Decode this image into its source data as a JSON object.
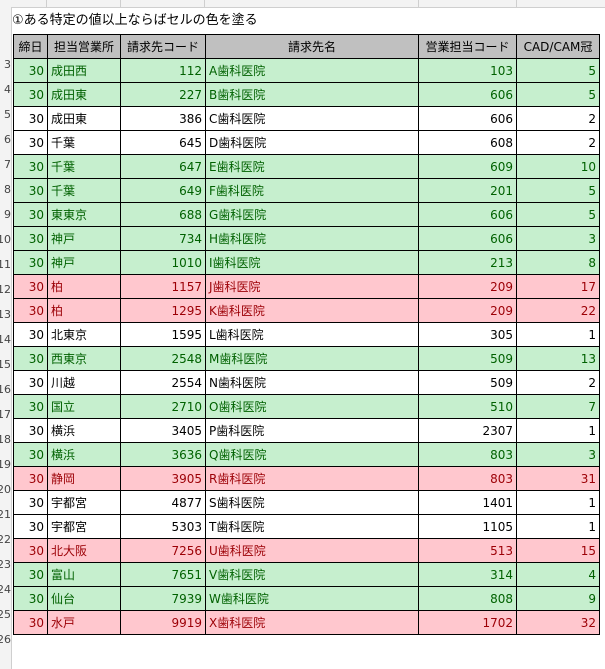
{
  "sheet": {
    "title": "①ある特定の値以上ならばセルの色を塗る",
    "row_numbers": [
      "3",
      "4",
      "5",
      "6",
      "7",
      "8",
      "9",
      "10",
      "11",
      "12",
      "13",
      "14",
      "15",
      "16",
      "17",
      "18",
      "19",
      "20",
      "21",
      "22",
      "23",
      "24",
      "25",
      "26"
    ]
  },
  "table": {
    "headers": [
      "締日",
      "担当営業所",
      "請求先コード",
      "請求先名",
      "営業担当コード",
      "CAD/CAM冠"
    ],
    "rows": [
      {
        "status": "green",
        "cells": [
          "30",
          "成田西",
          "112",
          "A歯科医院",
          "103",
          "5"
        ]
      },
      {
        "status": "green",
        "cells": [
          "30",
          "成田東",
          "227",
          "B歯科医院",
          "606",
          "5"
        ]
      },
      {
        "status": "plain",
        "cells": [
          "30",
          "成田東",
          "386",
          "C歯科医院",
          "606",
          "2"
        ]
      },
      {
        "status": "plain",
        "cells": [
          "30",
          "千葉",
          "645",
          "D歯科医院",
          "608",
          "2"
        ]
      },
      {
        "status": "green",
        "cells": [
          "30",
          "千葉",
          "647",
          "E歯科医院",
          "609",
          "10"
        ]
      },
      {
        "status": "green",
        "cells": [
          "30",
          "千葉",
          "649",
          "F歯科医院",
          "201",
          "5"
        ]
      },
      {
        "status": "green",
        "cells": [
          "30",
          "東東京",
          "688",
          "G歯科医院",
          "606",
          "5"
        ]
      },
      {
        "status": "green",
        "cells": [
          "30",
          "神戸",
          "734",
          "H歯科医院",
          "606",
          "3"
        ]
      },
      {
        "status": "green",
        "cells": [
          "30",
          "神戸",
          "1010",
          "I歯科医院",
          "213",
          "8"
        ]
      },
      {
        "status": "red",
        "cells": [
          "30",
          "柏",
          "1157",
          "J歯科医院",
          "209",
          "17"
        ]
      },
      {
        "status": "red",
        "cells": [
          "30",
          "柏",
          "1295",
          "K歯科医院",
          "209",
          "22"
        ]
      },
      {
        "status": "plain",
        "cells": [
          "30",
          "北東京",
          "1595",
          "L歯科医院",
          "305",
          "1"
        ]
      },
      {
        "status": "green",
        "cells": [
          "30",
          "西東京",
          "2548",
          "M歯科医院",
          "509",
          "13"
        ]
      },
      {
        "status": "plain",
        "cells": [
          "30",
          "川越",
          "2554",
          "N歯科医院",
          "509",
          "2"
        ]
      },
      {
        "status": "green",
        "cells": [
          "30",
          "国立",
          "2710",
          "O歯科医院",
          "510",
          "7"
        ]
      },
      {
        "status": "plain",
        "cells": [
          "30",
          "横浜",
          "3405",
          "P歯科医院",
          "2307",
          "1"
        ]
      },
      {
        "status": "green",
        "cells": [
          "30",
          "横浜",
          "3636",
          "Q歯科医院",
          "803",
          "3"
        ]
      },
      {
        "status": "red",
        "cells": [
          "30",
          "静岡",
          "3905",
          "R歯科医院",
          "803",
          "31"
        ]
      },
      {
        "status": "plain",
        "cells": [
          "30",
          "宇都宮",
          "4877",
          "S歯科医院",
          "1401",
          "1"
        ]
      },
      {
        "status": "plain",
        "cells": [
          "30",
          "宇都宮",
          "5303",
          "T歯科医院",
          "1105",
          "1"
        ]
      },
      {
        "status": "red",
        "cells": [
          "30",
          "北大阪",
          "7256",
          "U歯科医院",
          "513",
          "15"
        ]
      },
      {
        "status": "green",
        "cells": [
          "30",
          "富山",
          "7651",
          "V歯科医院",
          "314",
          "4"
        ]
      },
      {
        "status": "green",
        "cells": [
          "30",
          "仙台",
          "7939",
          "W歯科医院",
          "808",
          "9"
        ]
      },
      {
        "status": "red",
        "cells": [
          "30",
          "水戸",
          "9919",
          "X歯科医院",
          "1702",
          "32"
        ]
      }
    ]
  },
  "colors": {
    "green_fill": "#c6efce",
    "green_text": "#006100",
    "red_fill": "#ffc7ce",
    "red_text": "#9c0006",
    "header_fill": "#c0c0c0"
  }
}
